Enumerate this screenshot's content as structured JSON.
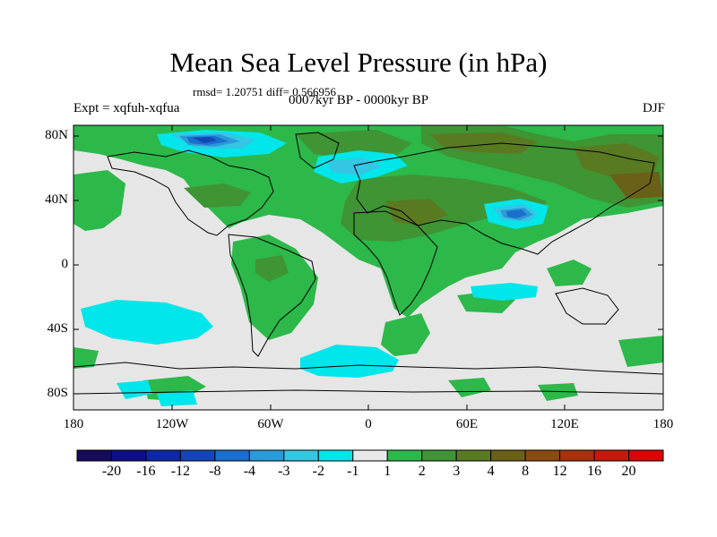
{
  "title": "Mean Sea Level Pressure (in hPa)",
  "stats": "rmsd= 1.20751 diff= 0.566956",
  "period": "0007kyr BP - 0000kyr BP",
  "experiment": "Expt = xqfuh-xqfua",
  "season": "DJF",
  "lat_labels": [
    "80N",
    "40N",
    "0",
    "40S",
    "80S"
  ],
  "lon_labels": [
    "180",
    "120W",
    "60W",
    "0",
    "60E",
    "120E",
    "180"
  ],
  "colorbar": {
    "labels": [
      "-20",
      "-16",
      "-12",
      "-8",
      "-4",
      "-3",
      "-2",
      "-1",
      "1",
      "2",
      "3",
      "4",
      "8",
      "12",
      "16",
      "20"
    ],
    "colors": [
      "#160a5a",
      "#100e86",
      "#0d28a6",
      "#1246b8",
      "#1a6fcc",
      "#2a9ad8",
      "#35c6e4",
      "#00e6ea",
      "#e8e8e8",
      "#2db84a",
      "#3f9434",
      "#5a7a22",
      "#6a6018",
      "#8a4a12",
      "#a8320e",
      "#c41a0a",
      "#dc0404"
    ]
  },
  "field_colors": {
    "ocean_bg": "#e6e6e6",
    "plus_1_2": "#2db84a",
    "plus_2_3": "#3f9434",
    "plus_3_4": "#5a7a22",
    "minus_1_2": "#00e6ea",
    "minus_2_3": "#35c6e4",
    "minus_3_4": "#2a9ad8",
    "minus_4_8": "#1a6fcc",
    "minus_8_12": "#1246b8"
  }
}
